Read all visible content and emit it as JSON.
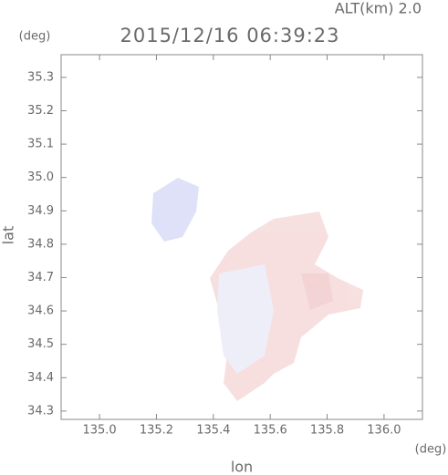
{
  "chart_data": {
    "type": "map",
    "altitude_label": "ALT(km)  2.0",
    "title": "2015/12/16 06:39:23",
    "y_unit": "(deg)",
    "x_unit": "(deg)",
    "ylabel": "lat",
    "xlabel": "lon",
    "xlim": [
      134.865,
      136.135
    ],
    "xticks": [
      {
        "value": 135,
        "label": "135.0"
      },
      135.2,
      135.4,
      135.6,
      135.8,
      {
        "value": 136,
        "label": "136.0"
      }
    ],
    "ylim": [
      34.275,
      35.368
    ],
    "yticks": [
      34.3,
      34.4,
      34.5,
      34.6,
      34.7,
      34.8,
      34.9,
      {
        "value": 35,
        "label": "35.0"
      },
      35.1,
      35.2,
      35.3
    ]
  }
}
